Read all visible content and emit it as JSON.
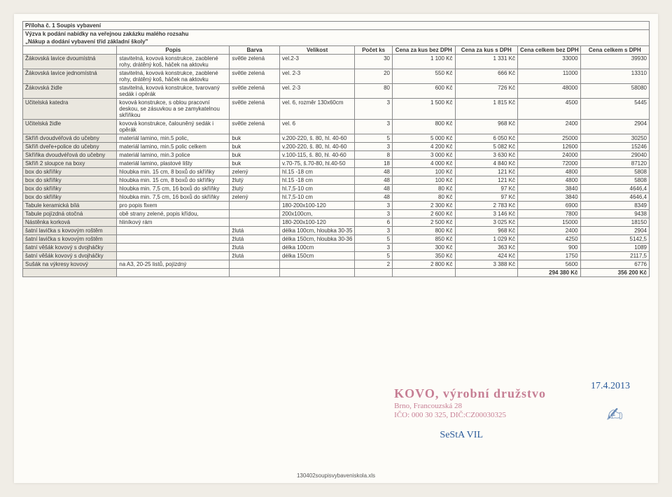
{
  "header": {
    "l1": "Příloha č. 1 Soupis vybavení",
    "l2": "Výzva k podání nabídky na veřejnou zakázku malého rozsahu",
    "l3": "„Nákup a dodání vybavení tříd základní školy\""
  },
  "columns": [
    "",
    "Popis",
    "Barva",
    "Velikost",
    "Počet ks",
    "Cena za kus bez DPH",
    "Cena za kus s DPH",
    "Cena celkem bez DPH",
    "Cena celkem s DPH"
  ],
  "colwidths": [
    "15%",
    "18%",
    "8%",
    "12%",
    "6%",
    "10%",
    "10%",
    "10%",
    "11%"
  ],
  "rows": [
    {
      "name": "Žákovská lavice dvoumístná",
      "popis": "stavitelná, kovová konstrukce, zaoblené rohy, drátěný koš, háček na aktovku",
      "barva": "světle zelená",
      "vel": "vel.2-3",
      "ks": "30",
      "bez": "1 100 Kč",
      "s": "1 331 Kč",
      "cb": "33000",
      "cs": "39930"
    },
    {
      "name": "Žákovská lavice jednomístná",
      "popis": "stavitelná, kovová konstrukce, zaoblené rohy, drátěný koš, háček na aktovku",
      "barva": "světle zelená",
      "vel": "vel. 2-3",
      "ks": "20",
      "bez": "550 Kč",
      "s": "666 Kč",
      "cb": "11000",
      "cs": "13310"
    },
    {
      "name": "Žákovská židle",
      "popis": "stavitelná, kovová konstrukce, tvarovaný sedák i opěrák",
      "barva": "světle zelená",
      "vel": "vel. 2-3",
      "ks": "80",
      "bez": "600 Kč",
      "s": "726 Kč",
      "cb": "48000",
      "cs": "58080"
    },
    {
      "name": "Učitelská katedra",
      "popis": "kovová konstrukce, s oblou pracovní deskou, se zásuvkou a se zamykatelnou skříňkou",
      "barva": "světle zelená",
      "vel": "vel. 6, rozměr 130x60cm",
      "ks": "3",
      "bez": "1 500 Kč",
      "s": "1 815 Kč",
      "cb": "4500",
      "cs": "5445"
    },
    {
      "name": "Učitelská židle",
      "popis": "kovová konstrukce, čalouněný sedák i opěrák",
      "barva": "světle zelená",
      "vel": "vel. 6",
      "ks": "3",
      "bez": "800 Kč",
      "s": "968 Kč",
      "cb": "2400",
      "cs": "2904"
    },
    {
      "name": "Skříň dvoudvéřová do učebny",
      "popis": "materiál lamino, min.5 polic,",
      "barva": "buk",
      "vel": "v.200-220, š. 80, hl. 40-60",
      "ks": "5",
      "bez": "5 000 Kč",
      "s": "6 050 Kč",
      "cb": "25000",
      "cs": "30250"
    },
    {
      "name": "Skříň dveře+police do učebny",
      "popis": "materiál lamino, min.5 polic celkem",
      "barva": "buk",
      "vel": "v.200-220, š. 80, hl. 40-60",
      "ks": "3",
      "bez": "4 200 Kč",
      "s": "5 082 Kč",
      "cb": "12600",
      "cs": "15246"
    },
    {
      "name": "Skříňka dvoudvéřová do učebny",
      "popis": "materiál lamino, min.3 police",
      "barva": "buk",
      "vel": "v.100-115, š. 80, hl. 40-60",
      "ks": "8",
      "bez": "3 000 Kč",
      "s": "3 630 Kč",
      "cb": "24000",
      "cs": "29040"
    },
    {
      "name": "Skříň 2 sloupce na boxy",
      "popis": "materiál lamino, plastové lišty",
      "barva": "buk",
      "vel": "v.70-75, š.70-80, hl.40-50",
      "ks": "18",
      "bez": "4 000 Kč",
      "s": "4 840 Kč",
      "cb": "72000",
      "cs": "87120"
    },
    {
      "name": "box do skříňky",
      "popis": "hloubka min. 15 cm, 8 boxů do skříňky",
      "barva": "zelený",
      "vel": "hl.15 -18 cm",
      "ks": "48",
      "bez": "100 Kč",
      "s": "121 Kč",
      "cb": "4800",
      "cs": "5808"
    },
    {
      "name": "box do skříňky",
      "popis": "hloubka min. 15 cm, 8 boxů do skříňky",
      "barva": "žlutý",
      "vel": "hl.15 -18 cm",
      "ks": "48",
      "bez": "100 Kč",
      "s": "121 Kč",
      "cb": "4800",
      "cs": "5808"
    },
    {
      "name": "box do skříňky",
      "popis": "hloubka min. 7,5 cm, 16 boxů do skříňky",
      "barva": "žlutý",
      "vel": "hl.7,5-10 cm",
      "ks": "48",
      "bez": "80 Kč",
      "s": "97 Kč",
      "cb": "3840",
      "cs": "4646,4"
    },
    {
      "name": "box do skříňky",
      "popis": "hloubka min. 7,5 cm, 16 boxů do skříňky",
      "barva": "zelený",
      "vel": "hl.7,5-10 cm",
      "ks": "48",
      "bez": "80 Kč",
      "s": "97 Kč",
      "cb": "3840",
      "cs": "4646,4"
    },
    {
      "name": "Tabule keramická bílá",
      "popis": "pro popis fixem",
      "barva": "",
      "vel": "180-200x100-120",
      "ks": "3",
      "bez": "2 300 Kč",
      "s": "2 783 Kč",
      "cb": "6900",
      "cs": "8349"
    },
    {
      "name": "Tabule pojízdná otočná",
      "popis": "obě strany zelené, popis křídou,",
      "barva": "",
      "vel": "200x100cm,",
      "ks": "3",
      "bez": "2 600 Kč",
      "s": "3 146 Kč",
      "cb": "7800",
      "cs": "9438"
    },
    {
      "name": "Nástěnka korková",
      "popis": "hliníkový rám",
      "barva": "",
      "vel": "180-200x100-120",
      "ks": "6",
      "bez": "2 500 Kč",
      "s": "3 025 Kč",
      "cb": "15000",
      "cs": "18150"
    },
    {
      "name": "šatní lavička s kovovým roštěm",
      "popis": "",
      "barva": "žlutá",
      "vel": "délka 100cm, hloubka 30-35",
      "ks": "3",
      "bez": "800 Kč",
      "s": "968 Kč",
      "cb": "2400",
      "cs": "2904"
    },
    {
      "name": "šatní lavička s kovovým roštěm",
      "popis": "",
      "barva": "žlutá",
      "vel": "délka 150cm, hloubka 30-36",
      "ks": "5",
      "bez": "850 Kč",
      "s": "1 029 Kč",
      "cb": "4250",
      "cs": "5142,5"
    },
    {
      "name": "šatní věšák kovový s dvojháčky",
      "popis": "",
      "barva": "žlutá",
      "vel": "délka 100cm",
      "ks": "3",
      "bez": "300 Kč",
      "s": "363 Kč",
      "cb": "900",
      "cs": "1089"
    },
    {
      "name": "šatní věšák kovový s dvojháčky",
      "popis": "",
      "barva": "žlutá",
      "vel": "délka 150cm",
      "ks": "5",
      "bez": "350 Kč",
      "s": "424 Kč",
      "cb": "1750",
      "cs": "2117,5"
    },
    {
      "name": "Sušák na výkresy kovový",
      "popis": "na A3, 20-25 listů, pojízdný",
      "barva": "",
      "vel": "",
      "ks": "2",
      "bez": "2 800 Kč",
      "s": "3 388 Kč",
      "cb": "5600",
      "cs": "6776"
    }
  ],
  "totals": {
    "cb": "294 380 Kč",
    "cs": "356 200 Kč"
  },
  "stamp": {
    "l1": "KOVO, výrobní družstvo",
    "l2": "Brno, Francouzská 28",
    "l3": "IČO: 000 30 325, DIČ:CZ00030325"
  },
  "date": "17.4.2013",
  "sesta": "SeStA VIL",
  "footer": "130402soupisvybaveniskola.xls"
}
